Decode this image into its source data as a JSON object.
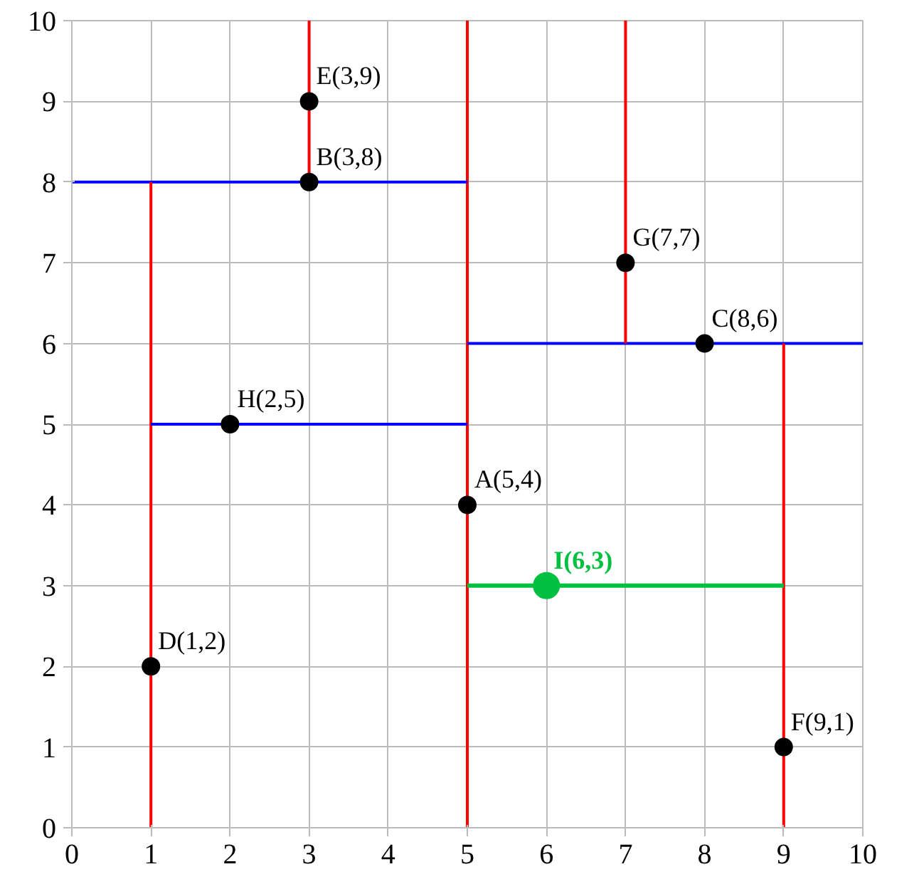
{
  "chart_data": {
    "type": "scatter",
    "xlim": [
      0,
      10
    ],
    "ylim": [
      0,
      10
    ],
    "xticks": [
      0,
      1,
      2,
      3,
      4,
      5,
      6,
      7,
      8,
      9,
      10
    ],
    "yticks": [
      0,
      1,
      2,
      3,
      4,
      5,
      6,
      7,
      8,
      9,
      10
    ],
    "grid": true,
    "series": [
      {
        "type": "line",
        "color": "#ff0000",
        "x": [
          5,
          5
        ],
        "values": [
          0,
          10
        ]
      },
      {
        "type": "line",
        "color": "#0000ff",
        "x": [
          0,
          5
        ],
        "values": [
          8,
          8
        ]
      },
      {
        "type": "line",
        "color": "#ff0000",
        "x": [
          1,
          1
        ],
        "values": [
          0,
          8
        ]
      },
      {
        "type": "line",
        "color": "#ff0000",
        "x": [
          3,
          3
        ],
        "values": [
          8,
          10
        ]
      },
      {
        "type": "line",
        "color": "#0000ff",
        "x": [
          1,
          5
        ],
        "values": [
          5,
          5
        ]
      },
      {
        "type": "line",
        "color": "#0000ff",
        "x": [
          5,
          10
        ],
        "values": [
          6,
          6
        ]
      },
      {
        "type": "line",
        "color": "#ff0000",
        "x": [
          7,
          7
        ],
        "values": [
          6,
          10
        ]
      },
      {
        "type": "line",
        "color": "#ff0000",
        "x": [
          9,
          9
        ],
        "values": [
          0,
          6
        ]
      },
      {
        "type": "line",
        "color": "#00c040",
        "x": [
          5,
          9
        ],
        "values": [
          3,
          3
        ]
      },
      {
        "marker": "circle",
        "color": "#000000",
        "x": [
          5,
          3,
          8,
          1,
          3,
          9,
          7,
          2
        ],
        "values": [
          4,
          8,
          6,
          2,
          9,
          1,
          7,
          5
        ]
      },
      {
        "marker": "circle",
        "color": "#00c040",
        "x": [
          6
        ],
        "values": [
          3
        ]
      }
    ],
    "annotations": [
      {
        "text": "A(5,4)",
        "x": 5,
        "y": 4
      },
      {
        "text": "B(3,8)",
        "x": 3,
        "y": 8
      },
      {
        "text": "C(8,6)",
        "x": 8,
        "y": 6
      },
      {
        "text": "D(1,2)",
        "x": 1,
        "y": 2
      },
      {
        "text": "E(3,9)",
        "x": 3,
        "y": 9
      },
      {
        "text": "F(9,1)",
        "x": 9,
        "y": 1
      },
      {
        "text": "G(7,7)",
        "x": 7,
        "y": 7
      },
      {
        "text": "H(2,5)",
        "x": 2,
        "y": 5
      },
      {
        "text": "I(6,3)",
        "x": 6,
        "y": 3
      }
    ]
  }
}
